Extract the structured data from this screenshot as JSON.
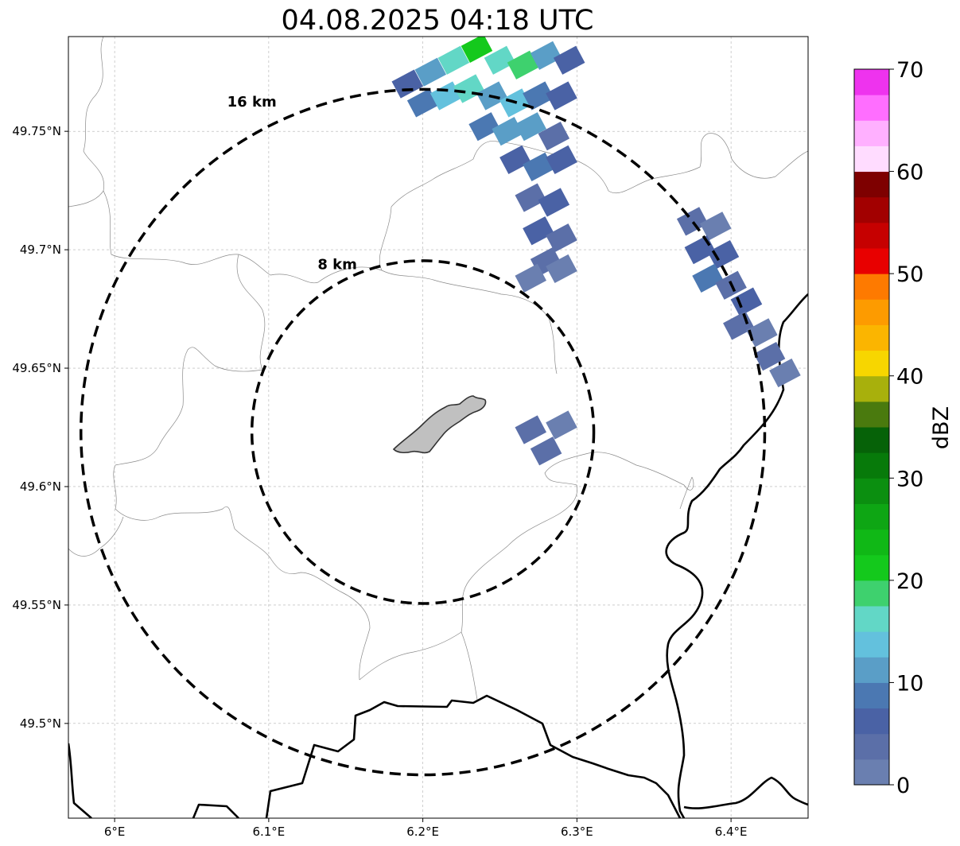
{
  "title": "04.08.2025 04:18 UTC",
  "x_axis": {
    "ticks": [
      "6°E",
      "6.1°E",
      "6.2°E",
      "6.3°E",
      "6.4°E"
    ],
    "values": [
      6.0,
      6.1,
      6.2,
      6.3,
      6.4
    ],
    "range": [
      5.97,
      6.45
    ]
  },
  "y_axis": {
    "ticks": [
      "49.75°N",
      "49.7°N",
      "49.65°N",
      "49.6°N",
      "49.55°N",
      "49.5°N"
    ],
    "values": [
      49.75,
      49.7,
      49.65,
      49.6,
      49.55,
      49.5
    ],
    "range": [
      49.46,
      49.79
    ]
  },
  "rings": [
    {
      "label": "16 km",
      "radius_km": 16
    },
    {
      "label": "8 km",
      "radius_km": 8
    }
  ],
  "center": {
    "lon": 6.2,
    "lat": 49.623
  },
  "colorbar": {
    "label": "dBZ",
    "ticks": [
      "0",
      "10",
      "20",
      "30",
      "40",
      "50",
      "60",
      "70"
    ],
    "min": 0,
    "max": 70,
    "step": 2.5,
    "colors": [
      "#6a7fb0",
      "#5b6fa8",
      "#4a62a5",
      "#4b78b2",
      "#5a9ec7",
      "#63c1dd",
      "#62d7c6",
      "#3ed16e",
      "#14c91c",
      "#10b816",
      "#0ea614",
      "#0b8f10",
      "#077a0a",
      "#066208",
      "#4a7a0e",
      "#a8b00c",
      "#f7d600",
      "#fbb500",
      "#fd9b00",
      "#fe7a00",
      "#e80000",
      "#c60000",
      "#a20000",
      "#7e0000",
      "#ffdcff",
      "#ffb0ff",
      "#ff6eff",
      "#ee33ee"
    ]
  },
  "chart_data": {
    "type": "heatmap",
    "title": "04.08.2025 04:18 UTC",
    "xlabel": "",
    "ylabel": "",
    "xlim": [
      5.97,
      6.45
    ],
    "ylim": [
      49.46,
      49.79
    ],
    "value_label": "dBZ",
    "value_range": [
      0,
      70
    ],
    "grid": true,
    "echo_cells": [
      {
        "lon": 6.19,
        "lat": 49.77,
        "dbz": 5
      },
      {
        "lon": 6.205,
        "lat": 49.775,
        "dbz": 12
      },
      {
        "lon": 6.22,
        "lat": 49.78,
        "dbz": 15
      },
      {
        "lon": 6.235,
        "lat": 49.785,
        "dbz": 22
      },
      {
        "lon": 6.25,
        "lat": 49.78,
        "dbz": 17
      },
      {
        "lon": 6.265,
        "lat": 49.778,
        "dbz": 18
      },
      {
        "lon": 6.28,
        "lat": 49.782,
        "dbz": 12
      },
      {
        "lon": 6.295,
        "lat": 49.78,
        "dbz": 5
      },
      {
        "lon": 6.2,
        "lat": 49.762,
        "dbz": 8
      },
      {
        "lon": 6.215,
        "lat": 49.765,
        "dbz": 14
      },
      {
        "lon": 6.23,
        "lat": 49.768,
        "dbz": 16
      },
      {
        "lon": 6.245,
        "lat": 49.765,
        "dbz": 11
      },
      {
        "lon": 6.26,
        "lat": 49.762,
        "dbz": 14
      },
      {
        "lon": 6.275,
        "lat": 49.765,
        "dbz": 9
      },
      {
        "lon": 6.29,
        "lat": 49.765,
        "dbz": 6
      },
      {
        "lon": 6.24,
        "lat": 49.752,
        "dbz": 8
      },
      {
        "lon": 6.255,
        "lat": 49.75,
        "dbz": 12
      },
      {
        "lon": 6.27,
        "lat": 49.752,
        "dbz": 10
      },
      {
        "lon": 6.285,
        "lat": 49.748,
        "dbz": 4
      },
      {
        "lon": 6.26,
        "lat": 49.738,
        "dbz": 6
      },
      {
        "lon": 6.275,
        "lat": 49.735,
        "dbz": 9
      },
      {
        "lon": 6.29,
        "lat": 49.738,
        "dbz": 5
      },
      {
        "lon": 6.27,
        "lat": 49.722,
        "dbz": 4
      },
      {
        "lon": 6.285,
        "lat": 49.72,
        "dbz": 6
      },
      {
        "lon": 6.275,
        "lat": 49.708,
        "dbz": 5
      },
      {
        "lon": 6.29,
        "lat": 49.705,
        "dbz": 3
      },
      {
        "lon": 6.28,
        "lat": 49.695,
        "dbz": 4
      },
      {
        "lon": 6.27,
        "lat": 49.688,
        "dbz": 2
      },
      {
        "lon": 6.29,
        "lat": 49.692,
        "dbz": 1
      },
      {
        "lon": 6.375,
        "lat": 49.712,
        "dbz": 3
      },
      {
        "lon": 6.39,
        "lat": 49.71,
        "dbz": 2
      },
      {
        "lon": 6.38,
        "lat": 49.7,
        "dbz": 5
      },
      {
        "lon": 6.395,
        "lat": 49.698,
        "dbz": 7
      },
      {
        "lon": 6.385,
        "lat": 49.688,
        "dbz": 9
      },
      {
        "lon": 6.4,
        "lat": 49.685,
        "dbz": 4
      },
      {
        "lon": 6.41,
        "lat": 49.678,
        "dbz": 5
      },
      {
        "lon": 6.405,
        "lat": 49.668,
        "dbz": 3
      },
      {
        "lon": 6.42,
        "lat": 49.665,
        "dbz": 2
      },
      {
        "lon": 6.425,
        "lat": 49.655,
        "dbz": 3
      },
      {
        "lon": 6.435,
        "lat": 49.648,
        "dbz": 1
      },
      {
        "lon": 6.27,
        "lat": 49.624,
        "dbz": 3
      },
      {
        "lon": 6.29,
        "lat": 49.626,
        "dbz": 2
      },
      {
        "lon": 6.28,
        "lat": 49.615,
        "dbz": 4
      }
    ]
  }
}
